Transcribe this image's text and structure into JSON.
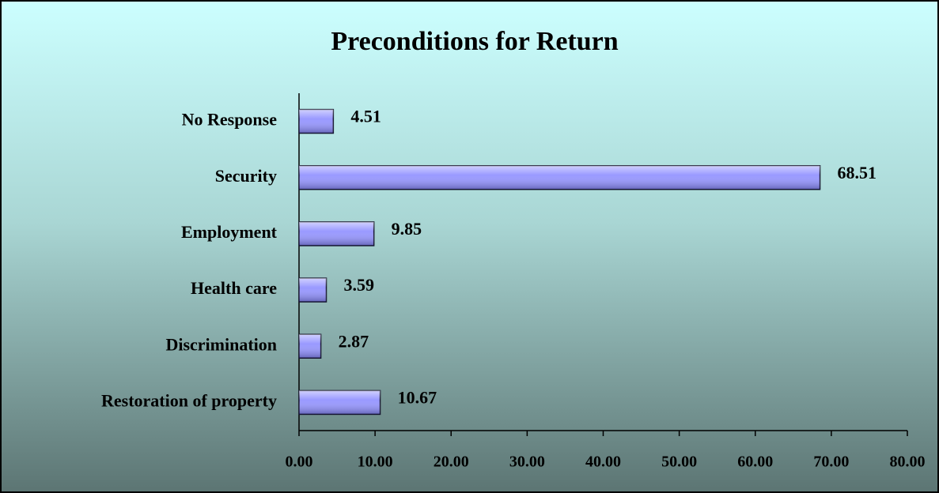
{
  "chart_data": {
    "type": "bar",
    "orientation": "horizontal",
    "title": "Preconditions for Return",
    "categories": [
      "No Response",
      "Security",
      "Employment",
      "Health care",
      "Discrimination",
      "Restoration of property"
    ],
    "values": [
      4.51,
      68.51,
      9.85,
      3.59,
      2.87,
      10.67
    ],
    "color": "#9999ff",
    "xlim": [
      0,
      80
    ],
    "xticks": [
      {
        "value": 0,
        "label": "0.00"
      },
      {
        "value": 10,
        "label": "10.00"
      },
      {
        "value": 20,
        "label": "20.00"
      },
      {
        "value": 30,
        "label": "30.00"
      },
      {
        "value": 40,
        "label": "40.00"
      },
      {
        "value": 50,
        "label": "50.00"
      },
      {
        "value": 60,
        "label": "60.00"
      },
      {
        "value": 70,
        "label": "70.00"
      },
      {
        "value": 80,
        "label": "80.00"
      }
    ],
    "grid": false
  }
}
